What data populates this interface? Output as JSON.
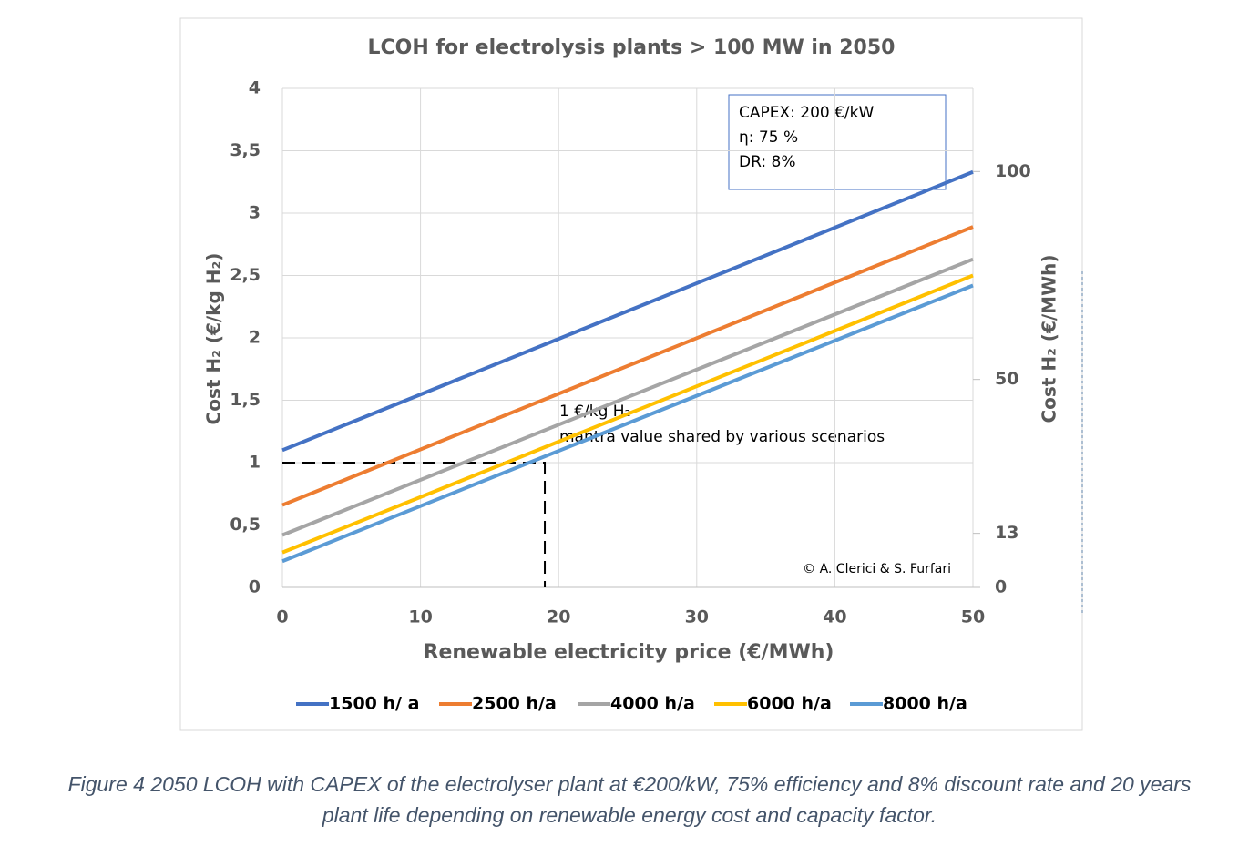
{
  "chart_data": {
    "type": "line",
    "title": "LCOH for electrolysis plants > 100 MW in 2050",
    "xlabel": "Renewable electricity price (€/MWh)",
    "ylabel": "Cost H₂ (€/kg H₂)",
    "y2label": "Cost H₂ (€/MWh)",
    "x": [
      0,
      50
    ],
    "series": [
      {
        "name": "1500 h/ a",
        "color": "#4472c4",
        "values": [
          1.1,
          3.33
        ]
      },
      {
        "name": "2500 h/a",
        "color": "#ed7d31",
        "values": [
          0.66,
          2.89
        ]
      },
      {
        "name": "4000 h/a",
        "color": "#a5a5a5",
        "values": [
          0.42,
          2.63
        ]
      },
      {
        "name": "6000 h/a",
        "color": "#ffc000",
        "values": [
          0.28,
          2.5
        ]
      },
      {
        "name": "8000 h/a",
        "color": "#5b9bd5",
        "values": [
          0.21,
          2.42
        ]
      }
    ],
    "xlim": [
      0,
      50
    ],
    "xticks": [
      0,
      10,
      20,
      30,
      40,
      50
    ],
    "ylim": [
      0,
      4
    ],
    "yticks": [
      0,
      {
        "value": 0.5,
        "label": "0,5"
      },
      1,
      {
        "value": 1.5,
        "label": "1,5"
      },
      2,
      {
        "value": 2.5,
        "label": "2,5"
      },
      3,
      {
        "value": 3.5,
        "label": "3,5"
      },
      4
    ],
    "y2lim": [
      0,
      120
    ],
    "y2ticks": [
      0,
      13,
      50,
      100
    ],
    "grid": true,
    "reference": {
      "x": 19,
      "y": 1
    },
    "info_box": [
      "CAPEX: 200 €/kW",
      "η: 75 %",
      "DR: 8%"
    ],
    "annotation": [
      "1 €/kg H₂",
      "mantra value shared by various scenarios"
    ],
    "credit": "© A. Clerici & S. Furfari"
  },
  "caption": [
    "Figure 4 2050 LCOH with CAPEX of the electrolyser plant at €200/kW, 75% efficiency and 8% discount rate and 20 years",
    "plant life depending on renewable energy cost and capacity factor."
  ]
}
